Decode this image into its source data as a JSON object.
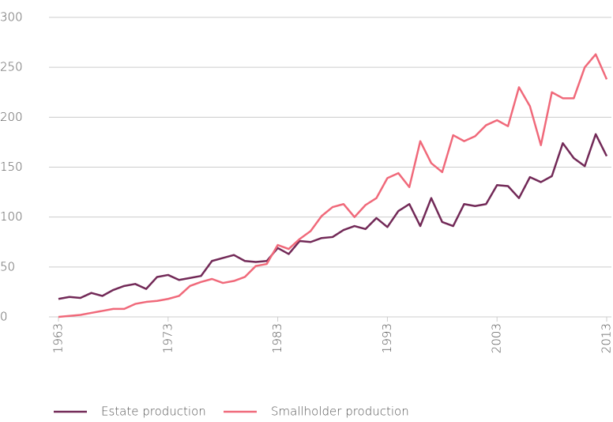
{
  "chart_data": {
    "type": "line",
    "x": [
      1963,
      1964,
      1965,
      1966,
      1967,
      1968,
      1969,
      1970,
      1971,
      1972,
      1973,
      1974,
      1975,
      1976,
      1977,
      1978,
      1979,
      1980,
      1981,
      1982,
      1983,
      1984,
      1985,
      1986,
      1987,
      1988,
      1989,
      1990,
      1991,
      1992,
      1993,
      1994,
      1995,
      1996,
      1997,
      1998,
      1999,
      2000,
      2001,
      2002,
      2003,
      2004,
      2005,
      2006,
      2007,
      2008,
      2009,
      2010,
      2011,
      2012,
      2013
    ],
    "series": [
      {
        "name": "Estate production",
        "color": "#722957",
        "values": [
          18,
          20,
          19,
          24,
          21,
          27,
          31,
          33,
          28,
          40,
          42,
          37,
          39,
          41,
          56,
          59,
          62,
          56,
          55,
          56,
          69,
          63,
          76,
          75,
          79,
          80,
          87,
          91,
          88,
          99,
          90,
          106,
          113,
          91,
          119,
          95,
          91,
          113,
          111,
          113,
          132,
          131,
          119,
          140,
          135,
          141,
          174,
          159,
          151,
          183,
          161
        ]
      },
      {
        "name": "Smallholder production",
        "color": "#f0697a",
        "values": [
          0,
          1,
          2,
          4,
          6,
          8,
          8,
          13,
          15,
          16,
          18,
          21,
          31,
          35,
          38,
          34,
          36,
          40,
          51,
          53,
          72,
          68,
          78,
          86,
          101,
          110,
          113,
          100,
          112,
          119,
          139,
          144,
          130,
          176,
          154,
          145,
          182,
          176,
          181,
          192,
          197,
          191,
          230,
          211,
          172,
          225,
          219,
          219,
          250,
          263,
          238
        ]
      }
    ],
    "xlim": [
      1963,
      2013
    ],
    "xticks": [
      1963,
      1973,
      1983,
      1993,
      2003,
      2013
    ],
    "ylim": [
      0,
      300
    ],
    "yticks": [
      0,
      50,
      100,
      150,
      200,
      250,
      300
    ],
    "grid": true,
    "legend": "bottom"
  }
}
